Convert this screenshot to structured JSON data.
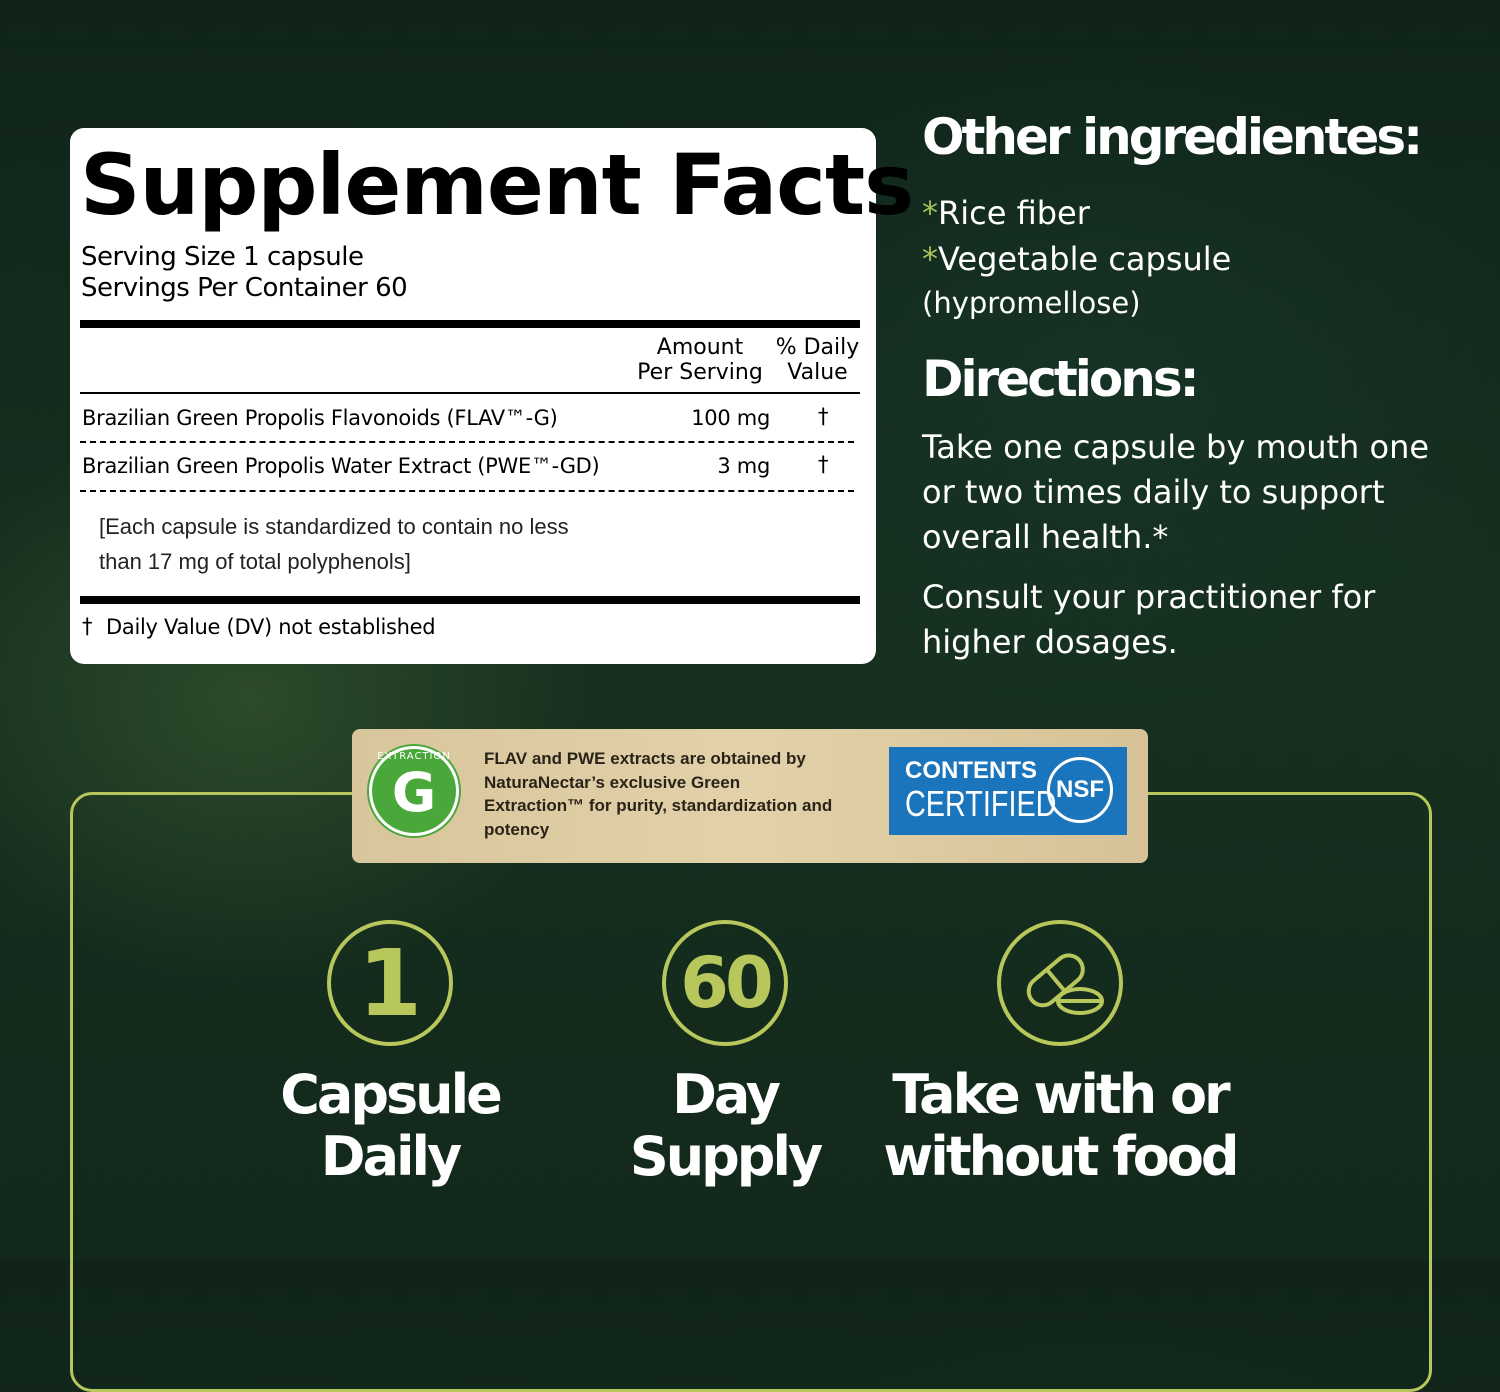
{
  "facts": {
    "title": "Supplement Facts",
    "serving_size": "Serving Size 1 capsule",
    "servings_per_container": "Servings Per Container 60",
    "col_amount_1": "Amount",
    "col_amount_2": "Per Serving",
    "col_dv_1": "% Daily",
    "col_dv_2": "Value",
    "rows": [
      {
        "name": "Brazilian Green Propolis Flavonoids (FLAV™-G)",
        "amount": "100 mg",
        "dv": "†"
      },
      {
        "name": "Brazilian Green Propolis Water Extract (PWE™-GD)",
        "amount": "3 mg",
        "dv": "†"
      }
    ],
    "note_1": "[Each capsule is standardized to contain no less",
    "note_2": "than 17 mg of total polyphenols]",
    "footnote_mark": "†",
    "footnote": "Daily Value (DV) not established"
  },
  "other": {
    "heading": "Other ingredientes:",
    "items": [
      {
        "mark": "*",
        "text": "Rice fiber"
      },
      {
        "mark": "*",
        "text": "Vegetable capsule"
      }
    ],
    "item_note": "(hypromellose)"
  },
  "directions": {
    "heading": "Directions:",
    "p1": "Take one capsule by mouth one or two times daily to support overall health.*",
    "p2": "Consult your practitioner for higher dosages."
  },
  "badge": {
    "logo_text": "EXTRACTION",
    "logo_letter": "G",
    "text": "FLAV and PWE extracts are obtained by NaturaNectar’s exclusive Green Extraction™ for purity, standardization and potency",
    "nsf_line1": "CONTENTS",
    "nsf_line2": "CERTIFIED",
    "nsf_mark": "NSF"
  },
  "features": [
    {
      "icon_text": "1",
      "line1": "Capsule",
      "line2": "Daily"
    },
    {
      "icon_text": "60",
      "line1": "Day",
      "line2": "Supply"
    },
    {
      "icon": "capsule-pills-icon",
      "line1": "Take with or",
      "line2": "without food"
    }
  ],
  "colors": {
    "accent": "#b7c75b",
    "background": "#12281b",
    "nsf_blue": "#1b75bc",
    "extraction_green": "#4aa83a"
  }
}
